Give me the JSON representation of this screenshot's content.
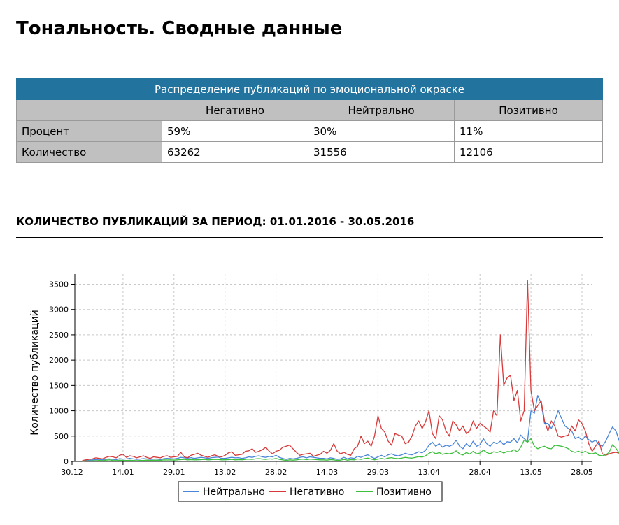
{
  "title": "Тональность. Сводные данные",
  "summary_table": {
    "caption": "Распределение публикаций по эмоциональной окраске",
    "columns": [
      "Негативно",
      "Нейтрально",
      "Позитивно"
    ],
    "rows": [
      {
        "label": "Процент",
        "values": [
          "59%",
          "30%",
          "11%"
        ]
      },
      {
        "label": "Количество",
        "values": [
          "63262",
          "31556",
          "12106"
        ]
      }
    ]
  },
  "section_title": "КОЛИЧЕСТВО ПУБЛИКАЦИЙ ЗА ПЕРИОД: 01.01.2016 - 30.05.2016",
  "chart_data": {
    "type": "line",
    "ylabel": "Количество публикаций",
    "xlabel": "",
    "x_tick_labels": [
      "30.12",
      "14.01",
      "29.01",
      "13.02",
      "28.02",
      "14.03",
      "29.03",
      "13.04",
      "28.04",
      "13.05",
      "28.05"
    ],
    "y_ticks": [
      0,
      500,
      1000,
      1500,
      2000,
      2500,
      3000,
      3500
    ],
    "ylim": [
      0,
      3700
    ],
    "grid": true,
    "legend_position": "bottom",
    "x_start_date": "01.01",
    "x_step_days": 1,
    "series": [
      {
        "name": "Нейтрально",
        "color": "#4a86d8",
        "values": [
          10,
          25,
          20,
          30,
          35,
          40,
          30,
          45,
          50,
          40,
          35,
          55,
          45,
          50,
          60,
          50,
          40,
          45,
          55,
          50,
          40,
          45,
          50,
          35,
          55,
          60,
          55,
          50,
          60,
          80,
          70,
          65,
          75,
          60,
          70,
          80,
          70,
          60,
          75,
          80,
          85,
          60,
          60,
          70,
          80,
          70,
          75,
          60,
          70,
          90,
          80,
          100,
          110,
          90,
          80,
          100,
          90,
          120,
          80,
          60,
          40,
          60,
          50,
          60,
          80,
          90,
          70,
          90,
          80,
          70,
          60,
          60,
          50,
          70,
          60,
          40,
          50,
          80,
          50,
          70,
          60,
          100,
          80,
          110,
          130,
          90,
          60,
          90,
          120,
          90,
          130,
          150,
          120,
          110,
          130,
          160,
          140,
          130,
          160,
          190,
          170,
          220,
          320,
          380,
          300,
          350,
          280,
          320,
          300,
          330,
          420,
          300,
          250,
          350,
          290,
          400,
          300,
          330,
          450,
          350,
          300,
          380,
          350,
          400,
          330,
          390,
          380,
          450,
          370,
          520,
          450,
          400,
          1000,
          950,
          1300,
          1150,
          750,
          750,
          650,
          800,
          1000,
          850,
          700,
          650,
          600,
          450,
          480,
          420,
          500,
          430,
          380,
          420,
          330,
          300,
          400,
          550,
          680,
          600,
          400,
          300,
          320,
          380,
          200,
          150,
          130,
          120,
          140,
          150,
          160,
          170,
          250,
          150,
          30
        ]
      },
      {
        "name": "Негативно",
        "color": "#d83a3a",
        "values": [
          15,
          30,
          40,
          50,
          70,
          60,
          50,
          80,
          100,
          90,
          70,
          120,
          140,
          80,
          110,
          100,
          70,
          90,
          110,
          80,
          60,
          90,
          80,
          70,
          100,
          110,
          80,
          90,
          100,
          180,
          90,
          70,
          120,
          140,
          160,
          120,
          100,
          80,
          110,
          130,
          100,
          90,
          120,
          170,
          190,
          120,
          130,
          140,
          200,
          210,
          250,
          180,
          200,
          230,
          280,
          200,
          150,
          200,
          220,
          280,
          300,
          320,
          250,
          180,
          120,
          140,
          150,
          160,
          100,
          120,
          140,
          200,
          160,
          220,
          350,
          200,
          150,
          180,
          140,
          120,
          250,
          300,
          500,
          350,
          400,
          300,
          500,
          900,
          650,
          580,
          400,
          320,
          550,
          520,
          500,
          350,
          380,
          500,
          700,
          800,
          650,
          780,
          1000,
          550,
          450,
          900,
          820,
          600,
          500,
          800,
          720,
          600,
          700,
          550,
          600,
          800,
          650,
          750,
          700,
          650,
          580,
          1000,
          900,
          2500,
          1500,
          1650,
          1700,
          1200,
          1400,
          800,
          1000,
          3580,
          1400,
          1000,
          1100,
          1200,
          800,
          600,
          800,
          700,
          500,
          480,
          500,
          520,
          700,
          600,
          820,
          750,
          600,
          350,
          200,
          300,
          400,
          150,
          120,
          150,
          170,
          180,
          160,
          150,
          200,
          210,
          30
        ]
      },
      {
        "name": "Позитивно",
        "color": "#3cbf3c",
        "values": [
          5,
          10,
          8,
          12,
          15,
          20,
          15,
          25,
          30,
          20,
          15,
          25,
          20,
          18,
          22,
          20,
          15,
          18,
          20,
          25,
          20,
          22,
          25,
          20,
          30,
          28,
          30,
          25,
          30,
          35,
          40,
          30,
          35,
          30,
          32,
          35,
          40,
          30,
          35,
          40,
          38,
          30,
          32,
          35,
          40,
          30,
          35,
          32,
          40,
          45,
          40,
          50,
          55,
          45,
          40,
          50,
          45,
          60,
          40,
          30,
          20,
          30,
          25,
          30,
          40,
          45,
          35,
          45,
          40,
          35,
          30,
          30,
          25,
          35,
          30,
          20,
          25,
          40,
          25,
          35,
          30,
          50,
          40,
          55,
          65,
          45,
          30,
          45,
          60,
          45,
          65,
          75,
          60,
          55,
          65,
          80,
          70,
          65,
          80,
          95,
          85,
          110,
          160,
          190,
          150,
          175,
          140,
          160,
          150,
          165,
          210,
          150,
          125,
          175,
          145,
          200,
          150,
          165,
          225,
          175,
          150,
          190,
          175,
          200,
          165,
          195,
          190,
          230,
          190,
          280,
          420,
          380,
          450,
          300,
          250,
          280,
          300,
          260,
          250,
          320,
          310,
          300,
          280,
          250,
          200,
          180,
          200,
          170,
          200,
          160,
          150,
          170,
          120,
          110,
          130,
          180,
          330,
          260,
          160,
          120,
          100,
          80,
          60,
          70,
          80,
          80,
          70,
          80,
          90,
          80,
          90,
          70,
          20
        ]
      }
    ]
  }
}
